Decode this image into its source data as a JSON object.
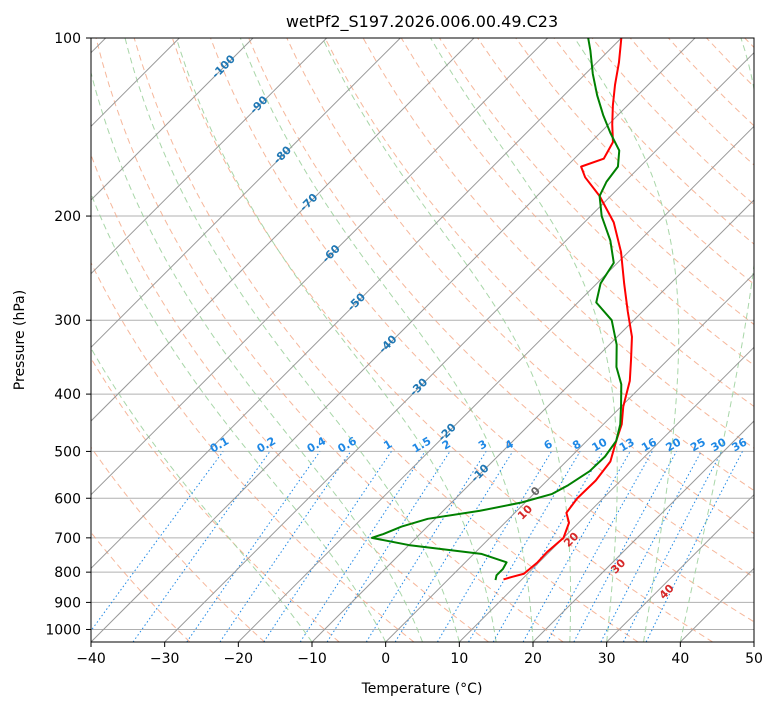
{
  "chart_data": {
    "type": "line",
    "title": "wetPf2_S197.2026.006.00.49.C23",
    "xlabel": "Temperature (°C)",
    "ylabel": "Pressure (hPa)",
    "xlim": [
      -40,
      50
    ],
    "ylim": [
      1050,
      100
    ],
    "y_scale": "log",
    "x_ticks": [
      -40,
      -30,
      -20,
      -10,
      0,
      10,
      20,
      30,
      40,
      50
    ],
    "x_tick_labels": [
      "−40",
      "−30",
      "−20",
      "−10",
      "0",
      "10",
      "20",
      "30",
      "40",
      "50"
    ],
    "y_ticks": [
      1000,
      900,
      800,
      700,
      600,
      500,
      400,
      300,
      200,
      100
    ],
    "y_tick_labels": [
      "1000",
      "900",
      "800",
      "700",
      "600",
      "500",
      "400",
      "300",
      "200",
      "100"
    ],
    "grid": true,
    "colors": {
      "temperature": "#ff0000",
      "dewpoint": "#008000",
      "isotherm": "#999999",
      "dry_adiabat": "#f4a582",
      "moist_adiabat": "#9fd29f",
      "mixing_ratio": "#1e88e5",
      "isotherm_label": "#1f77b4",
      "moist_label": "#d62728"
    },
    "series": [
      {
        "name": "Temperature",
        "color": "#ff0000",
        "points": [
          {
            "p": 823,
            "t": 7.5
          },
          {
            "p": 815,
            "t": 8.3
          },
          {
            "p": 805,
            "t": 9.5
          },
          {
            "p": 770,
            "t": 9.8
          },
          {
            "p": 740,
            "t": 9.7
          },
          {
            "p": 700,
            "t": 10.0
          },
          {
            "p": 660,
            "t": 8.7
          },
          {
            "p": 635,
            "t": 7.0
          },
          {
            "p": 600,
            "t": 6.5
          },
          {
            "p": 560,
            "t": 6.6
          },
          {
            "p": 520,
            "t": 6.0
          },
          {
            "p": 480,
            "t": 4.0
          },
          {
            "p": 450,
            "t": 2.5
          },
          {
            "p": 420,
            "t": 0.3
          },
          {
            "p": 380,
            "t": -2.3
          },
          {
            "p": 350,
            "t": -5.0
          },
          {
            "p": 320,
            "t": -8.0
          },
          {
            "p": 290,
            "t": -12.0
          },
          {
            "p": 260,
            "t": -16.3
          },
          {
            "p": 230,
            "t": -21.0
          },
          {
            "p": 205,
            "t": -26.0
          },
          {
            "p": 185,
            "t": -31.5
          },
          {
            "p": 172,
            "t": -36.0
          },
          {
            "p": 165,
            "t": -38.0
          },
          {
            "p": 160,
            "t": -36.0
          },
          {
            "p": 150,
            "t": -37.0
          },
          {
            "p": 140,
            "t": -39.5
          },
          {
            "p": 130,
            "t": -42.0
          },
          {
            "p": 120,
            "t": -44.5
          },
          {
            "p": 110,
            "t": -47.0
          },
          {
            "p": 100,
            "t": -50.0
          }
        ]
      },
      {
        "name": "Dewpoint",
        "color": "#008000",
        "points": [
          {
            "p": 825,
            "t": 6.5
          },
          {
            "p": 810,
            "t": 6.0
          },
          {
            "p": 790,
            "t": 6.0
          },
          {
            "p": 770,
            "t": 5.6
          },
          {
            "p": 745,
            "t": 1.0
          },
          {
            "p": 720,
            "t": -10.0
          },
          {
            "p": 700,
            "t": -16.0
          },
          {
            "p": 690,
            "t": -15.0
          },
          {
            "p": 670,
            "t": -13.5
          },
          {
            "p": 650,
            "t": -11.0
          },
          {
            "p": 630,
            "t": -5.0
          },
          {
            "p": 610,
            "t": -0.5
          },
          {
            "p": 590,
            "t": 2.5
          },
          {
            "p": 570,
            "t": 3.5
          },
          {
            "p": 540,
            "t": 4.5
          },
          {
            "p": 510,
            "t": 4.6
          },
          {
            "p": 480,
            "t": 4.0
          },
          {
            "p": 450,
            "t": 2.3
          },
          {
            "p": 420,
            "t": 0.0
          },
          {
            "p": 385,
            "t": -3.0
          },
          {
            "p": 360,
            "t": -6.0
          },
          {
            "p": 330,
            "t": -9.0
          },
          {
            "p": 300,
            "t": -13.0
          },
          {
            "p": 280,
            "t": -17.5
          },
          {
            "p": 260,
            "t": -19.5
          },
          {
            "p": 240,
            "t": -20.5
          },
          {
            "p": 220,
            "t": -24.0
          },
          {
            "p": 200,
            "t": -28.5
          },
          {
            "p": 185,
            "t": -31.5
          },
          {
            "p": 175,
            "t": -32.5
          },
          {
            "p": 165,
            "t": -33.0
          },
          {
            "p": 155,
            "t": -35.0
          },
          {
            "p": 145,
            "t": -38.5
          },
          {
            "p": 135,
            "t": -42.0
          },
          {
            "p": 125,
            "t": -45.5
          },
          {
            "p": 115,
            "t": -49.0
          },
          {
            "p": 105,
            "t": -52.5
          },
          {
            "p": 100,
            "t": -54.5
          }
        ]
      }
    ],
    "isotherm_labels": [
      "-100",
      "-90",
      "-80",
      "-70",
      "-60",
      "-50",
      "-40",
      "-30",
      "-20",
      "-10",
      "0"
    ],
    "isotherm_label_values": [
      -100,
      -90,
      -80,
      -70,
      -60,
      -50,
      -40,
      -30,
      -20,
      -10,
      0
    ],
    "mixing_ratio_labels": [
      "0.1",
      "0.2",
      "0.4",
      "0.6",
      "1",
      "1.5",
      "2",
      "3",
      "4",
      "6",
      "8",
      "10",
      "13",
      "16",
      "20",
      "25",
      "30",
      "36"
    ],
    "mixing_ratio_values": [
      0.1,
      0.2,
      0.4,
      0.6,
      1,
      1.5,
      2,
      3,
      4,
      6,
      8,
      10,
      13,
      16,
      20,
      25,
      30,
      36
    ],
    "moist_adiabat_labels": [
      "10",
      "20",
      "30",
      "40"
    ],
    "moist_adiabat_values": [
      10,
      20,
      30,
      40
    ]
  }
}
